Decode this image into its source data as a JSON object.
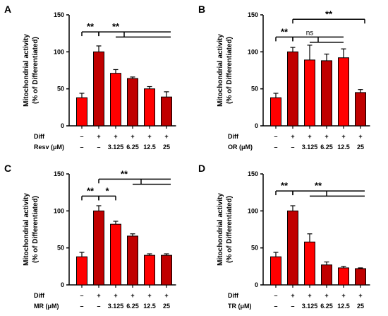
{
  "colors": {
    "bright": "#ff0000",
    "dark": "#c00000",
    "outline": "#000000"
  },
  "y_label_line1": "Mitochondrial activity",
  "y_label_line2": "(% of Differentiated)",
  "chart_data": [
    {
      "panel": "A",
      "type": "bar",
      "treatment_label": "Resv (μM)",
      "diff_row_label": "Diff",
      "diff_signs": [
        "–",
        "+",
        "+",
        "+",
        "+",
        "+"
      ],
      "dose_labels": [
        "–",
        "–",
        "3.125",
        "6.25",
        "12.5",
        "25"
      ],
      "values": [
        38,
        100,
        71,
        64,
        50,
        39
      ],
      "errors": [
        6,
        8,
        5,
        2,
        3,
        7
      ],
      "bar_colors": [
        "bright",
        "dark",
        "bright",
        "dark",
        "bright",
        "dark"
      ],
      "ylim": [
        0,
        150
      ],
      "yticks": [
        0,
        50,
        100,
        150
      ],
      "significance": [
        {
          "label": "**",
          "from": 0,
          "to": 1,
          "y": 127
        },
        {
          "label": "**",
          "from": 1,
          "to": 5,
          "y": 127,
          "branch_from": 2,
          "branch_to": 3,
          "branch_y": 120
        }
      ]
    },
    {
      "panel": "B",
      "type": "bar",
      "treatment_label": "OR (μM)",
      "diff_row_label": "Diff",
      "diff_signs": [
        "–",
        "+",
        "+",
        "+",
        "+",
        "+"
      ],
      "dose_labels": [
        "–",
        "–",
        "3.125",
        "6.25",
        "12.5",
        "25"
      ],
      "values": [
        38,
        100,
        89,
        88,
        92,
        45
      ],
      "errors": [
        6,
        6,
        20,
        9,
        12,
        4
      ],
      "bar_colors": [
        "bright",
        "dark",
        "bright",
        "dark",
        "bright",
        "dark"
      ],
      "ylim": [
        0,
        150
      ],
      "yticks": [
        0,
        50,
        100,
        150
      ],
      "significance": [
        {
          "label": "**",
          "from": 0,
          "to": 1,
          "y": 120
        },
        {
          "label": "ns",
          "from": 1,
          "to": 4,
          "y": 120,
          "branch_from": 2,
          "branch_to": 3,
          "branch_y": 113
        },
        {
          "label": "**",
          "from": 1,
          "to": 5,
          "y": 144
        }
      ]
    },
    {
      "panel": "C",
      "type": "bar",
      "treatment_label": "MR (μM)",
      "diff_row_label": "Diff",
      "diff_signs": [
        "–",
        "+",
        "+",
        "+",
        "+",
        "+"
      ],
      "dose_labels": [
        "–",
        "–",
        "3.125",
        "6.25",
        "12.5",
        "25"
      ],
      "values": [
        38,
        100,
        82,
        66,
        40,
        40
      ],
      "errors": [
        6,
        7,
        4,
        3,
        2,
        2
      ],
      "bar_colors": [
        "bright",
        "dark",
        "bright",
        "dark",
        "bright",
        "dark"
      ],
      "ylim": [
        0,
        150
      ],
      "yticks": [
        0,
        50,
        100,
        150
      ],
      "significance": [
        {
          "label": "**",
          "from": 0,
          "to": 1,
          "y": 120
        },
        {
          "label": "*",
          "from": 1,
          "to": 2,
          "y": 120
        },
        {
          "label": "**",
          "from": 1,
          "to": 5,
          "y": 143,
          "branch_from": 3,
          "branch_to": 4,
          "branch_y": 136
        }
      ]
    },
    {
      "panel": "D",
      "type": "bar",
      "treatment_label": "TR (μM)",
      "diff_row_label": "Diff",
      "diff_signs": [
        "–",
        "+",
        "+",
        "+",
        "+",
        "+"
      ],
      "dose_labels": [
        "–",
        "–",
        "3.125",
        "6.25",
        "12.5",
        "25"
      ],
      "values": [
        38,
        100,
        58,
        27,
        23,
        22
      ],
      "errors": [
        6,
        7,
        11,
        4,
        2,
        1
      ],
      "bar_colors": [
        "bright",
        "dark",
        "bright",
        "dark",
        "bright",
        "dark"
      ],
      "ylim": [
        0,
        150
      ],
      "yticks": [
        0,
        50,
        100,
        150
      ],
      "significance": [
        {
          "label": "**",
          "from": 0,
          "to": 1,
          "y": 127
        },
        {
          "label": "**",
          "from": 1,
          "to": 5,
          "y": 127,
          "branch_from": 2,
          "branch_to": 4,
          "branch_y": 120
        }
      ]
    }
  ]
}
